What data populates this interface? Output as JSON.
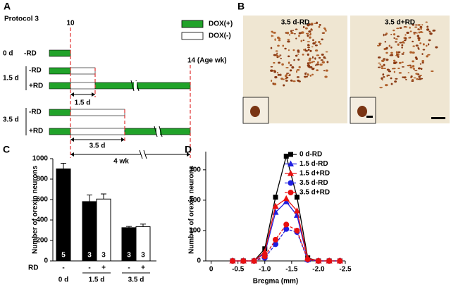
{
  "diagram": {
    "label": "A",
    "protocol": "Protocol 3",
    "time_start": "10",
    "time_end": "14 (Age wk)",
    "legend": {
      "dox_plus": "DOX(+)",
      "dox_minus": "DOX(-)"
    },
    "groups": [
      {
        "label": "0 d",
        "rows": [
          "-RD"
        ]
      },
      {
        "label": "1.5 d",
        "rows": [
          "-RD",
          "+RD"
        ],
        "duration": "1.5 d"
      },
      {
        "label": "3.5 d",
        "rows": [
          "-RD",
          "+RD"
        ],
        "duration": "3.5 d"
      }
    ],
    "span": "4 wk"
  },
  "micrographs": {
    "label": "B",
    "images": [
      "3.5 d-RD",
      "3.5 d+RD"
    ]
  },
  "chart_data": [
    {
      "type": "bar",
      "panel": "C",
      "ylabel": "Number of orexin neurons",
      "categories": [
        "0 d",
        "1.5 d",
        "3.5 d"
      ],
      "factor_label": "RD",
      "series": [
        {
          "color": "#000000",
          "values": [
            900,
            580,
            325
          ],
          "errors": [
            55,
            65,
            12
          ],
          "n_labels": [
            "5",
            "3",
            "3"
          ],
          "rd": "-"
        },
        {
          "color": "#ffffff",
          "values": [
            null,
            605,
            335
          ],
          "errors": [
            null,
            50,
            25
          ],
          "n_labels": [
            null,
            "3",
            "3"
          ],
          "rd": "+"
        }
      ],
      "ylim": [
        0,
        1000
      ],
      "yticks": [
        0,
        200,
        400,
        600,
        800,
        1000
      ]
    },
    {
      "type": "line",
      "panel": "D",
      "xlabel": "Bregma (mm)",
      "ylabel": "Number of orexin neurons",
      "x": [
        -0.4,
        -0.6,
        -0.8,
        -1.0,
        -1.2,
        -1.4,
        -1.6,
        -1.8,
        -2.0,
        -2.2,
        -2.4
      ],
      "series": [
        {
          "name": "0 d-RD",
          "color": "#000000",
          "marker": "square",
          "dashed": false,
          "values": [
            0,
            0,
            0,
            40,
            210,
            345,
            210,
            10,
            0,
            0,
            0
          ]
        },
        {
          "name": "1.5 d-RD",
          "color": "#1f1fe0",
          "marker": "triangle",
          "dashed": false,
          "values": [
            0,
            0,
            0,
            25,
            160,
            195,
            150,
            5,
            0,
            0,
            0
          ]
        },
        {
          "name": "1.5 d+RD",
          "color": "#e81010",
          "marker": "triangle",
          "dashed": false,
          "values": [
            0,
            0,
            0,
            30,
            180,
            205,
            165,
            8,
            0,
            0,
            0
          ]
        },
        {
          "name": "3.5 d-RD",
          "color": "#1f1fe0",
          "marker": "circle",
          "dashed": true,
          "values": [
            0,
            0,
            0,
            10,
            55,
            105,
            95,
            3,
            0,
            0,
            0
          ]
        },
        {
          "name": "3.5 d+RD",
          "color": "#e81010",
          "marker": "circle",
          "dashed": true,
          "values": [
            0,
            0,
            0,
            15,
            70,
            120,
            100,
            5,
            0,
            0,
            0
          ]
        }
      ],
      "xlim": [
        0.1,
        -2.5
      ],
      "xticks": [
        0,
        {
          "value": -0.5,
          "label": "-0.5"
        },
        {
          "value": -1.0,
          "label": "-1.0"
        },
        {
          "value": -1.5,
          "label": "-1.5"
        },
        {
          "value": -2.0,
          "label": "-2.0"
        },
        {
          "value": -2.5,
          "label": "-2.5"
        }
      ],
      "ylim": [
        0,
        360
      ],
      "yticks": [
        0,
        100,
        200,
        300
      ]
    }
  ]
}
